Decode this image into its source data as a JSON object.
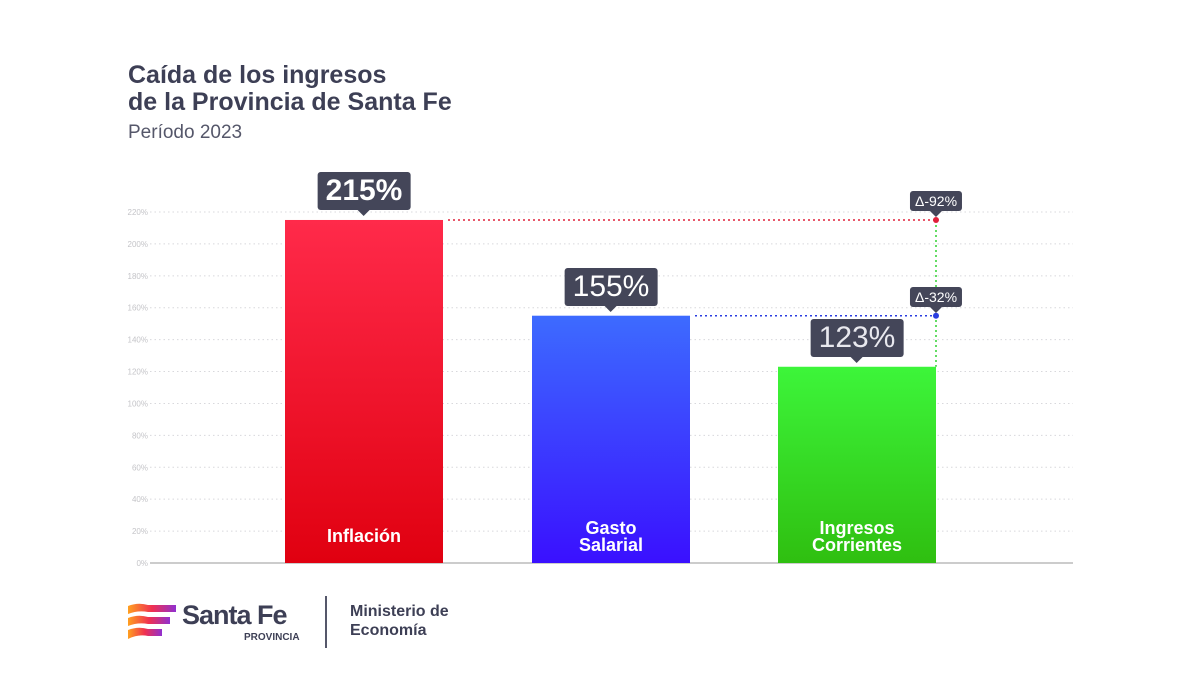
{
  "title_line1": "Caída de los ingresos",
  "title_line2": "de la Provincia de Santa Fe",
  "subtitle": "Período 2023",
  "footer": {
    "brand": "Santa Fe",
    "brand_sub": "PROVINCIA",
    "ministry_line1": "Ministerio de",
    "ministry_line2": "Economía"
  },
  "chart_data": {
    "type": "bar",
    "categories": [
      [
        "Inflación"
      ],
      [
        "Gasto",
        "Salarial"
      ],
      [
        "Ingresos",
        "Corrientes"
      ]
    ],
    "values": [
      215,
      155,
      123
    ],
    "value_labels": [
      "215%",
      "155%",
      "123%"
    ],
    "colors": [
      [
        "#ff2a4a",
        "#e00010"
      ],
      [
        "#3d6bff",
        "#3a10ff"
      ],
      [
        "#3df53a",
        "#2fbf10"
      ]
    ],
    "ylim": [
      0,
      220
    ],
    "yticks": [
      "0%",
      "20%",
      "40%",
      "60%",
      "80%",
      "100%",
      "120%",
      "140%",
      "160%",
      "180%",
      "200%",
      "220%"
    ],
    "grid": true,
    "annotations": [
      {
        "label": "Δ-92%",
        "from_value": 215,
        "to_value": 123,
        "color": "#e0203a"
      },
      {
        "label": "Δ-32%",
        "from_value": 155,
        "to_value": 123,
        "color": "#2a3de0"
      }
    ],
    "connector_color": "#30d030"
  }
}
